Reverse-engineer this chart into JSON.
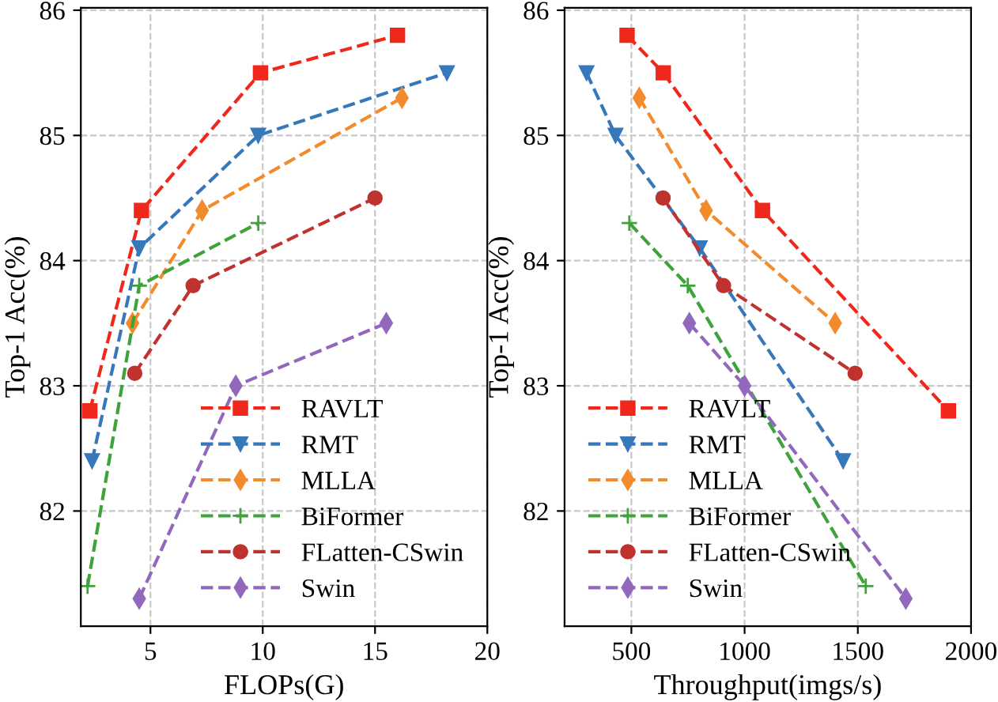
{
  "chart_data": [
    {
      "type": "line",
      "xlabel": "FLOPs(G)",
      "ylabel": "Top-1 Acc(%)",
      "xlim": [
        1.9,
        20
      ],
      "ylim": [
        81.08,
        86.02
      ],
      "xticks": [
        5,
        10,
        15,
        20
      ],
      "yticks": [
        82,
        83,
        84,
        85,
        86
      ],
      "grid": true,
      "legend": "bottom right",
      "line_style": "dashed",
      "series": [
        {
          "name": "RAVLT",
          "color": "#f0281c",
          "marker": "square",
          "x": [
            2.3,
            4.6,
            9.9,
            16.0
          ],
          "values": [
            82.8,
            84.4,
            85.5,
            85.8
          ]
        },
        {
          "name": "RMT",
          "color": "#3778bb",
          "marker": "triangle",
          "x": [
            2.4,
            4.5,
            9.8,
            18.2
          ],
          "values": [
            82.4,
            84.1,
            85.0,
            85.5
          ]
        },
        {
          "name": "MLLA",
          "color": "#f38a2c",
          "marker": "diamond",
          "x": [
            4.2,
            7.3,
            16.2
          ],
          "values": [
            83.5,
            84.4,
            85.3
          ]
        },
        {
          "name": "BiFormer",
          "color": "#3ea33a",
          "marker": "cross",
          "x": [
            2.2,
            4.5,
            9.8
          ],
          "values": [
            81.4,
            83.8,
            84.3
          ]
        },
        {
          "name": "FLatten-CSwin",
          "color": "#c0322e",
          "marker": "circle",
          "x": [
            4.3,
            6.9,
            15.0
          ],
          "values": [
            83.1,
            83.8,
            84.5
          ]
        },
        {
          "name": "Swin",
          "color": "#9268bd",
          "marker": "diamond",
          "x": [
            4.5,
            8.8,
            15.5
          ],
          "values": [
            81.3,
            83.0,
            83.5
          ]
        }
      ]
    },
    {
      "type": "line",
      "xlabel": "Throughput(imgs/s)",
      "ylabel": "Top-1 Acc(%)",
      "xlim": [
        205,
        2000
      ],
      "ylim": [
        81.08,
        86.02
      ],
      "xticks": [
        500,
        1000,
        1500,
        2000
      ],
      "yticks": [
        82,
        83,
        84,
        85,
        86
      ],
      "grid": true,
      "legend": "bottom left",
      "line_style": "dashed",
      "series": [
        {
          "name": "RAVLT",
          "color": "#f0281c",
          "marker": "square",
          "x": [
            481,
            641,
            1079,
            1900
          ],
          "values": [
            85.8,
            85.5,
            84.4,
            82.8
          ]
        },
        {
          "name": "RMT",
          "color": "#3778bb",
          "marker": "triangle",
          "x": [
            302,
            430,
            802,
            1435
          ],
          "values": [
            85.5,
            85.0,
            84.1,
            82.4
          ]
        },
        {
          "name": "MLLA",
          "color": "#f38a2c",
          "marker": "diamond",
          "x": [
            535,
            830,
            1400
          ],
          "values": [
            85.3,
            84.4,
            83.5
          ]
        },
        {
          "name": "BiFormer",
          "color": "#3ea33a",
          "marker": "cross",
          "x": [
            491,
            749,
            1535
          ],
          "values": [
            84.3,
            83.8,
            81.4
          ]
        },
        {
          "name": "FLatten-CSwin",
          "color": "#c0322e",
          "marker": "circle",
          "x": [
            640,
            907,
            1488
          ],
          "values": [
            84.5,
            83.8,
            83.1
          ]
        },
        {
          "name": "Swin",
          "color": "#9268bd",
          "marker": "diamond",
          "x": [
            756,
            1000,
            1712
          ],
          "values": [
            83.5,
            83.0,
            81.3
          ]
        }
      ]
    }
  ]
}
